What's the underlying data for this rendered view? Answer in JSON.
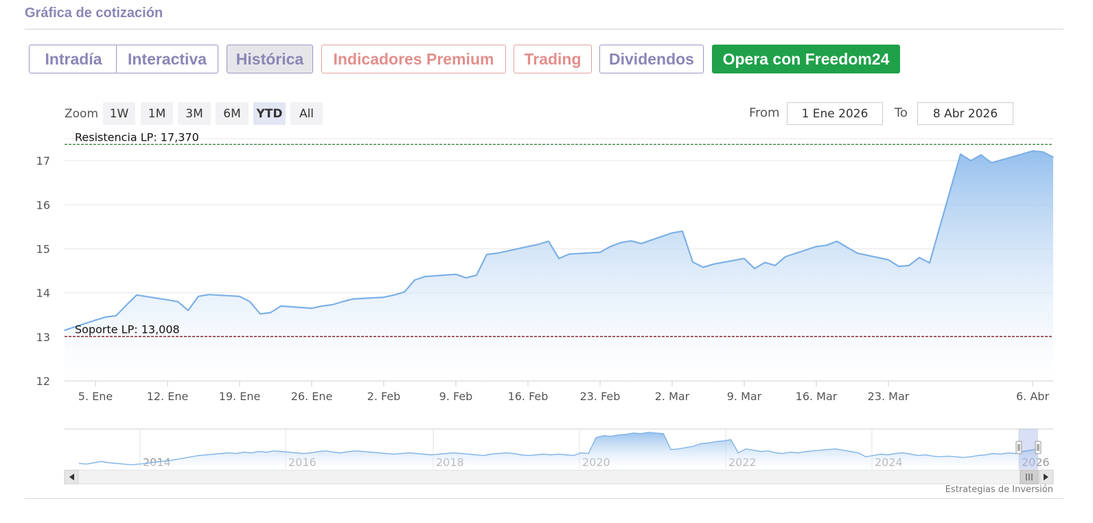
{
  "section_title": "Gráfica de cotización",
  "tabs": [
    {
      "label": "Intradía",
      "style": "purple"
    },
    {
      "label": "Interactiva",
      "style": "purple"
    },
    {
      "label": "Histórica",
      "style": "purple active"
    },
    {
      "label": "Indicadores Premium",
      "style": "red"
    },
    {
      "label": "Trading",
      "style": "red"
    },
    {
      "label": "Dividendos",
      "style": "purple"
    },
    {
      "label": "Opera con Freedom24",
      "style": "green"
    }
  ],
  "zoom": {
    "label": "Zoom",
    "buttons": [
      "1W",
      "1M",
      "3M",
      "6M",
      "YTD",
      "All"
    ],
    "selected": "YTD"
  },
  "range": {
    "from_label": "From",
    "from_value": "1 Ene 2026",
    "to_label": "To",
    "to_value": "8 Abr 2026"
  },
  "colors": {
    "line": "#7cb0e6",
    "area_top": "#9cc4ef",
    "resistance": "#2e7d32",
    "support": "#8b1a1a",
    "accent": "#8a86b5"
  },
  "credits": "Estrategias de Inversión",
  "chart_data": {
    "type": "area",
    "ylim": [
      12,
      17.5
    ],
    "yticks": [
      12,
      13,
      14,
      15,
      16,
      17
    ],
    "xlabels": [
      "5. Ene",
      "12. Ene",
      "19. Ene",
      "26. Ene",
      "2. Feb",
      "9. Feb",
      "16. Feb",
      "23. Feb",
      "2. Mar",
      "9. Mar",
      "16. Mar",
      "23. Mar",
      "6. Abr"
    ],
    "x": [
      "2026-01-02",
      "2026-01-05",
      "2026-01-06",
      "2026-01-07",
      "2026-01-08",
      "2026-01-09",
      "2026-01-12",
      "2026-01-13",
      "2026-01-14",
      "2026-01-15",
      "2026-01-16",
      "2026-01-19",
      "2026-01-20",
      "2026-01-21",
      "2026-01-22",
      "2026-01-23",
      "2026-01-26",
      "2026-01-27",
      "2026-01-28",
      "2026-01-29",
      "2026-01-30",
      "2026-02-02",
      "2026-02-03",
      "2026-02-04",
      "2026-02-05",
      "2026-02-06",
      "2026-02-09",
      "2026-02-10",
      "2026-02-11",
      "2026-02-12",
      "2026-02-13",
      "2026-02-16",
      "2026-02-17",
      "2026-02-18",
      "2026-02-19",
      "2026-02-20",
      "2026-02-23",
      "2026-02-24",
      "2026-02-25",
      "2026-02-26",
      "2026-02-27",
      "2026-03-02",
      "2026-03-03",
      "2026-03-04",
      "2026-03-05",
      "2026-03-06",
      "2026-03-09",
      "2026-03-10",
      "2026-03-11",
      "2026-03-12",
      "2026-03-13",
      "2026-03-16",
      "2026-03-17",
      "2026-03-18",
      "2026-03-19",
      "2026-03-20",
      "2026-03-23",
      "2026-03-24",
      "2026-03-25",
      "2026-03-26",
      "2026-03-27",
      "2026-03-30",
      "2026-03-31",
      "2026-04-01",
      "2026-04-02",
      "2026-04-06",
      "2026-04-07",
      "2026-04-08"
    ],
    "values": [
      13.15,
      13.38,
      13.45,
      13.48,
      13.72,
      13.95,
      13.84,
      13.8,
      13.6,
      13.92,
      13.96,
      13.92,
      13.8,
      13.52,
      13.55,
      13.7,
      13.65,
      13.7,
      13.73,
      13.8,
      13.86,
      13.9,
      13.95,
      14.02,
      14.29,
      14.37,
      14.42,
      14.34,
      14.4,
      14.87,
      14.9,
      15.05,
      15.1,
      15.17,
      14.78,
      14.88,
      14.92,
      15.05,
      15.14,
      15.18,
      15.12,
      15.36,
      15.4,
      14.7,
      14.58,
      14.65,
      14.78,
      14.55,
      14.69,
      14.62,
      14.82,
      15.05,
      15.08,
      15.17,
      15.03,
      14.9,
      14.75,
      14.6,
      14.62,
      14.8,
      14.68,
      17.15,
      17.0,
      17.13,
      16.95,
      17.22,
      17.2,
      17.08
    ],
    "reference_lines": [
      {
        "label": "Resistencia LP: 17,370",
        "value": 17.37
      },
      {
        "label": "Soporte LP: 13,008",
        "value": 13.008
      }
    ],
    "navigator": {
      "year_labels": [
        "2014",
        "2016",
        "2018",
        "2020",
        "2022",
        "2024",
        "2026"
      ],
      "values": [
        13.0,
        12.9,
        13.1,
        13.3,
        13.1,
        13.0,
        12.9,
        12.8,
        12.9,
        13.0,
        13.2,
        13.3,
        13.4,
        13.6,
        13.8,
        14.0,
        14.2,
        14.3,
        14.4,
        14.5,
        14.6,
        14.5,
        14.7,
        14.6,
        14.8,
        14.7,
        14.9,
        14.8,
        14.7,
        14.6,
        14.5,
        14.6,
        14.8,
        14.9,
        14.7,
        14.6,
        14.8,
        14.9,
        14.8,
        14.7,
        14.6,
        14.5,
        14.4,
        14.5,
        14.6,
        14.5,
        14.4,
        14.3,
        14.4,
        14.5,
        14.6,
        14.5,
        14.4,
        14.3,
        14.2,
        14.4,
        14.5,
        14.6,
        14.5,
        14.3,
        14.2,
        14.3,
        14.4,
        14.3,
        14.4,
        14.3,
        14.2,
        14.6,
        14.5,
        16.9,
        17.2,
        17.1,
        17.3,
        17.4,
        17.6,
        17.5,
        17.7,
        17.6,
        17.5,
        15.1,
        15.2,
        15.4,
        15.6,
        16.0,
        16.1,
        16.3,
        16.4,
        16.6,
        14.6,
        15.2,
        15.0,
        14.8,
        14.9,
        14.6,
        14.5,
        14.7,
        14.6,
        14.8,
        14.9,
        15.0,
        15.1,
        15.2,
        15.0,
        14.8,
        14.6,
        14.0,
        14.2,
        14.4,
        14.3,
        14.5,
        14.6,
        14.4,
        14.2,
        14.3,
        14.1,
        14.0,
        14.1,
        14.0,
        13.9,
        14.0,
        14.2,
        14.3,
        14.5,
        14.4,
        14.6,
        14.5,
        14.8,
        15.0,
        15.2
      ]
    }
  }
}
